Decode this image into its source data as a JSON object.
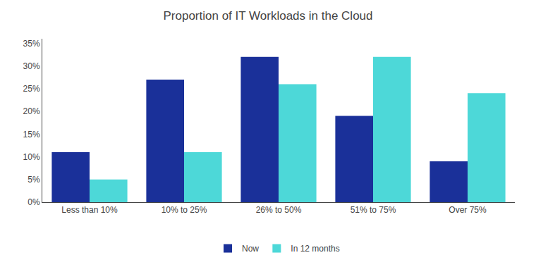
{
  "chart_data": {
    "type": "bar",
    "title": "Proportion of IT Workloads in the Cloud",
    "categories": [
      "Less than 10%",
      "10% to 25%",
      "26% to 50%",
      "51% to 75%",
      "Over 75%"
    ],
    "series": [
      {
        "name": "Now",
        "color": "#1a3099",
        "values": [
          11,
          27,
          32,
          19,
          9
        ]
      },
      {
        "name": "In 12 months",
        "color": "#4dd8d8",
        "values": [
          5,
          11,
          26,
          32,
          24
        ]
      }
    ],
    "ylim": [
      0,
      36
    ],
    "yticks": [
      {
        "value": 0,
        "label": "0%"
      },
      {
        "value": 5,
        "label": "5%"
      },
      {
        "value": 10,
        "label": "10%"
      },
      {
        "value": 15,
        "label": "15%"
      },
      {
        "value": 20,
        "label": "20%"
      },
      {
        "value": 25,
        "label": "25%"
      },
      {
        "value": 30,
        "label": "30%"
      },
      {
        "value": 35,
        "label": "35%"
      }
    ],
    "grid": false,
    "legend": "bottom"
  }
}
